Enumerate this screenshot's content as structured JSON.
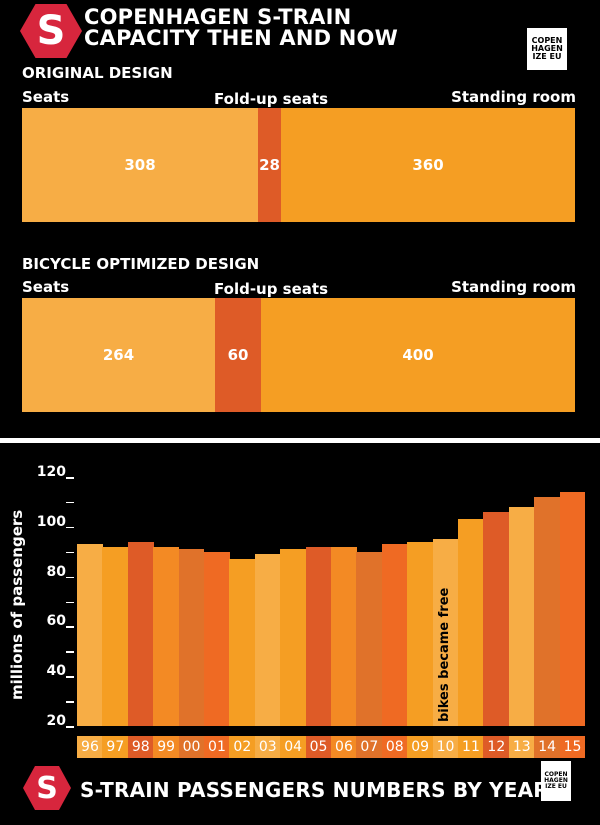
{
  "header": {
    "logo_letter": "S",
    "title_line1": "COPENHAGEN S-TRAIN",
    "title_line2": "CAPACITY THEN AND NOW",
    "brand_logo": "COPEN HAGEN IZE EU"
  },
  "capacity": {
    "original": {
      "heading": "ORIGINAL DESIGN",
      "labels": {
        "seats": "Seats",
        "fold": "Fold-up seats",
        "standing": "Standing room"
      },
      "values": {
        "seats": "308",
        "fold": "28",
        "standing": "360"
      }
    },
    "bicycle": {
      "heading": "BICYCLE OPTIMIZED DESIGN",
      "labels": {
        "seats": "Seats",
        "fold": "Fold-up seats",
        "standing": "Standing room"
      },
      "values": {
        "seats": "264",
        "fold": "60",
        "standing": "400"
      }
    },
    "colors": {
      "seats": "#F7AD45",
      "fold": "#DE5B27",
      "standing": "#F59E23"
    }
  },
  "chart_data": {
    "type": "bar",
    "title": "S-TRAIN PASSENGERS NUMBERS BY YEAR",
    "ylabel": "millions of passengers",
    "xlabel": "",
    "ylim": [
      20,
      120
    ],
    "yticks": [
      "20",
      "40",
      "60",
      "80",
      "100",
      "120"
    ],
    "categories": [
      "96",
      "97",
      "98",
      "99",
      "00",
      "01",
      "02",
      "03",
      "04",
      "05",
      "06",
      "07",
      "08",
      "09",
      "10",
      "11",
      "12",
      "13",
      "14",
      "15"
    ],
    "values": [
      93,
      92,
      94,
      92,
      91,
      90,
      87,
      89,
      91,
      92,
      92,
      90,
      93,
      94,
      95,
      103,
      106,
      108,
      112,
      114
    ],
    "colors": [
      "#F7AD45",
      "#F59E23",
      "#DE5B27",
      "#F38A24",
      "#E0722A",
      "#EF6A23",
      "#F59E23",
      "#F7AD45",
      "#F59E23",
      "#DE5B27",
      "#F38A24",
      "#E0722A",
      "#EF6A23",
      "#F59E23",
      "#F7AD45",
      "#F59E23",
      "#DE5B27",
      "#F7AD45",
      "#E0722A",
      "#EF6A23"
    ],
    "annotation": "bikes became free",
    "grid": false
  },
  "footer": {
    "logo_letter": "S",
    "title": "S-TRAIN PASSENGERS NUMBERS BY YEAR",
    "brand_logo": "COPEN HAGEN IZE EU"
  }
}
